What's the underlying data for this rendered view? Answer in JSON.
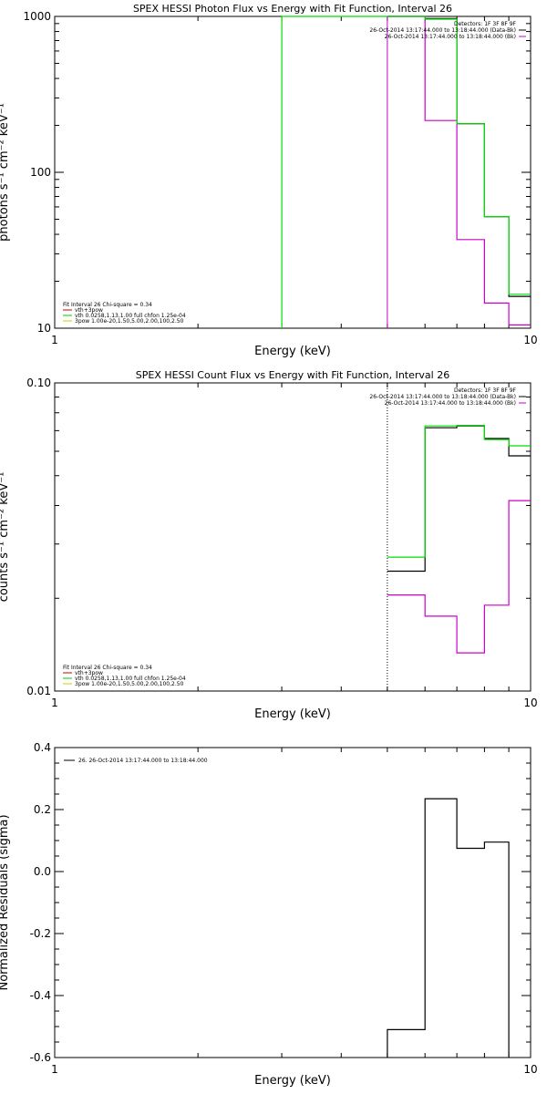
{
  "chart_data": [
    {
      "type": "line",
      "title": "SPEX HESSI Photon Flux vs Energy with Fit Function, Interval 26",
      "xlabel": "Energy (keV)",
      "ylabel": "photons s⁻¹ cm⁻² keV⁻¹",
      "xscale": "log",
      "yscale": "log",
      "xlim": [
        1,
        10
      ],
      "ylim": [
        10,
        1000
      ],
      "xticks": [
        {
          "value": 1,
          "label": "1"
        },
        {
          "value": 10,
          "label": "10"
        }
      ],
      "yticks": [
        {
          "value": 10,
          "label": "10"
        },
        {
          "value": 100,
          "label": "100"
        },
        {
          "value": 1000,
          "label": "1000"
        }
      ],
      "legend_top_right": [
        {
          "text": "Detectors: 1F 3F 8F 9F",
          "color": "#000000"
        },
        {
          "text": "26-Oct-2014 13:17:44.000 to 13:18:44.000 (Data-Bk)",
          "color": "#000000"
        },
        {
          "text": "26-Oct-2014 13:17:44.000 to 13:18:44.000 (Bk)",
          "color": "#cc00cc"
        }
      ],
      "legend_bottom_left": [
        {
          "text": "Fit Interval 26   Chi-square = 0.34",
          "color": "#000000"
        },
        {
          "text": "vth+3pow",
          "color": "#cc0000"
        },
        {
          "text": "vth 0.0258,1.13,1.00  full chfon 1.25e-04",
          "color": "#00cc00"
        },
        {
          "text": "3pow 1.00e-20,1.50,5.00,2.00,100,2.50",
          "color": "#cccc00"
        }
      ],
      "series": [
        {
          "color": "#000000",
          "edges": [
            5,
            6,
            7,
            8,
            9,
            10
          ],
          "values": [
            1040,
            970,
            205,
            52,
            16
          ]
        },
        {
          "color": "#cc00cc",
          "edges": [
            5,
            6,
            7,
            8,
            9,
            10
          ],
          "values": [
            1040,
            215,
            37,
            14.5,
            10.5
          ]
        },
        {
          "color": "#00dd00",
          "edges": [
            3,
            5,
            6,
            7,
            8,
            9,
            10
          ],
          "values": [
            1000,
            1030,
            960,
            205,
            52,
            16.5
          ],
          "start_from_bottom": true
        }
      ],
      "vlines": [
        {
          "x": 5,
          "color": "#cc00cc",
          "dash": false
        }
      ]
    },
    {
      "type": "line",
      "title": "SPEX HESSI Count Flux vs Energy with Fit Function, Interval 26",
      "xlabel": "Energy (keV)",
      "ylabel": "counts s⁻¹ cm⁻² keV⁻¹",
      "xscale": "log",
      "yscale": "log",
      "xlim": [
        1,
        10
      ],
      "ylim": [
        0.01,
        0.1
      ],
      "xticks": [
        {
          "value": 1,
          "label": "1"
        },
        {
          "value": 10,
          "label": "10"
        }
      ],
      "yticks": [
        {
          "value": 0.01,
          "label": "0.01"
        },
        {
          "value": 0.1,
          "label": "0.10"
        }
      ],
      "legend_top_right": [
        {
          "text": "Detectors: 1F 3F 8F 9F",
          "color": "#000000"
        },
        {
          "text": "26-Oct-2014 13:17:44.000 to 13:18:44.000 (Data-Bk)",
          "color": "#000000"
        },
        {
          "text": "26-Oct-2014 13:17:44.000 to 13:18:44.000 (Bk)",
          "color": "#cc00cc"
        }
      ],
      "legend_bottom_left": [
        {
          "text": "Fit Interval 26   Chi-square = 0.34",
          "color": "#000000"
        },
        {
          "text": "vth+3pow",
          "color": "#cc0000"
        },
        {
          "text": "vth 0.0258,1.13,1.00  full chfon 1.25e-04",
          "color": "#00cc00"
        },
        {
          "text": "3pow 1.00e-20,1.50,5.00,2.00,100,2.50",
          "color": "#cccc00"
        }
      ],
      "series": [
        {
          "color": "#000000",
          "edges": [
            5,
            6,
            7,
            8,
            9,
            10
          ],
          "values": [
            0.0245,
            0.0715,
            0.0725,
            0.066,
            0.058
          ]
        },
        {
          "color": "#cc00cc",
          "edges": [
            5,
            6,
            7,
            8,
            9,
            10
          ],
          "values": [
            0.0205,
            0.0175,
            0.0133,
            0.019,
            0.0415
          ]
        },
        {
          "color": "#00dd00",
          "edges": [
            5,
            6,
            7,
            8,
            9,
            10
          ],
          "values": [
            0.0272,
            0.0725,
            0.0728,
            0.0655,
            0.0625
          ]
        }
      ],
      "vlines": [
        {
          "x": 5,
          "color": "#000000",
          "dash": true
        }
      ]
    },
    {
      "type": "line",
      "title": "",
      "xlabel": "Energy (keV)",
      "ylabel": "Normalized Residuals (sigma)",
      "xscale": "log",
      "yscale": "linear",
      "xlim": [
        1,
        10
      ],
      "ylim": [
        -0.6,
        0.4
      ],
      "xticks": [
        {
          "value": 1,
          "label": "1"
        },
        {
          "value": 10,
          "label": "10"
        }
      ],
      "yticks": [
        {
          "value": -0.6,
          "label": "-0.6"
        },
        {
          "value": -0.4,
          "label": "-0.4"
        },
        {
          "value": -0.2,
          "label": "-0.2"
        },
        {
          "value": 0,
          "label": "0.0"
        },
        {
          "value": 0.2,
          "label": "0.2"
        },
        {
          "value": 0.4,
          "label": "0.4"
        }
      ],
      "legend_top_right": [],
      "legend_top_left": [
        {
          "text": "26. 26-Oct-2014 13:17:44.000 to 13:18:44.000",
          "color": "#000000"
        }
      ],
      "legend_bottom_left": [],
      "series": [
        {
          "color": "#000000",
          "edges": [
            5,
            6,
            7,
            8,
            9
          ],
          "values": [
            -0.51,
            0.235,
            0.075,
            0.095
          ],
          "start_from_bottom": true,
          "end_to_bottom": true
        }
      ],
      "vlines": []
    }
  ]
}
